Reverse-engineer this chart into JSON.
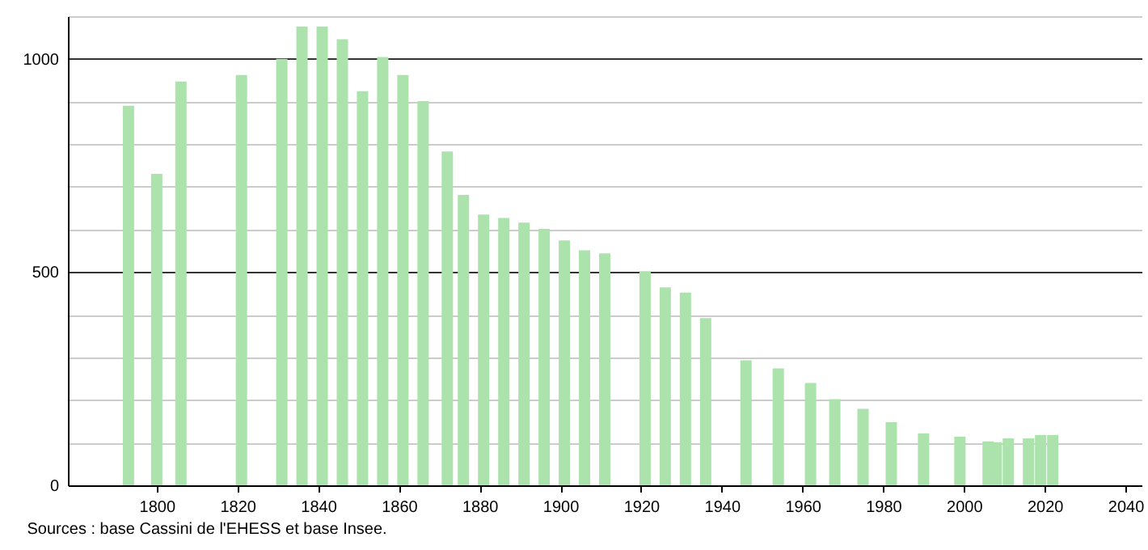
{
  "chart_data": {
    "type": "bar",
    "x": [
      1793,
      1800,
      1806,
      1821,
      1831,
      1836,
      1841,
      1846,
      1851,
      1856,
      1861,
      1866,
      1872,
      1876,
      1881,
      1886,
      1891,
      1896,
      1901,
      1906,
      1911,
      1921,
      1926,
      1931,
      1936,
      1946,
      1954,
      1962,
      1968,
      1975,
      1982,
      1990,
      1999,
      2006,
      2008,
      2011,
      2016,
      2019,
      2022
    ],
    "values": [
      890,
      730,
      947,
      962,
      1000,
      1076,
      1076,
      1046,
      924,
      1004,
      962,
      901,
      783,
      681,
      635,
      627,
      616,
      601,
      574,
      551,
      544,
      502,
      464,
      452,
      392,
      293,
      274,
      240,
      202,
      179,
      148,
      122,
      114,
      103,
      101,
      110,
      110,
      118,
      118
    ],
    "color": "#ace3ac",
    "xlim": [
      1778,
      2044
    ],
    "ylim": [
      0,
      1100
    ],
    "xticks": [
      1800,
      1820,
      1840,
      1860,
      1880,
      1900,
      1920,
      1940,
      1960,
      1980,
      2000,
      2020,
      2040
    ],
    "yticks": [
      0,
      {
        "value": 100,
        "label": null
      },
      {
        "value": 200,
        "label": null
      },
      {
        "value": 300,
        "label": null
      },
      {
        "value": 400,
        "label": null
      },
      500,
      {
        "value": 600,
        "label": null
      },
      {
        "value": 700,
        "label": null
      },
      {
        "value": 800,
        "label": null
      },
      {
        "value": 900,
        "label": null
      },
      1000,
      {
        "value": 1100,
        "label": null
      }
    ],
    "grid": "y",
    "annotations": [
      "Sources : base Cassini de l'EHESS et base Insee."
    ]
  }
}
